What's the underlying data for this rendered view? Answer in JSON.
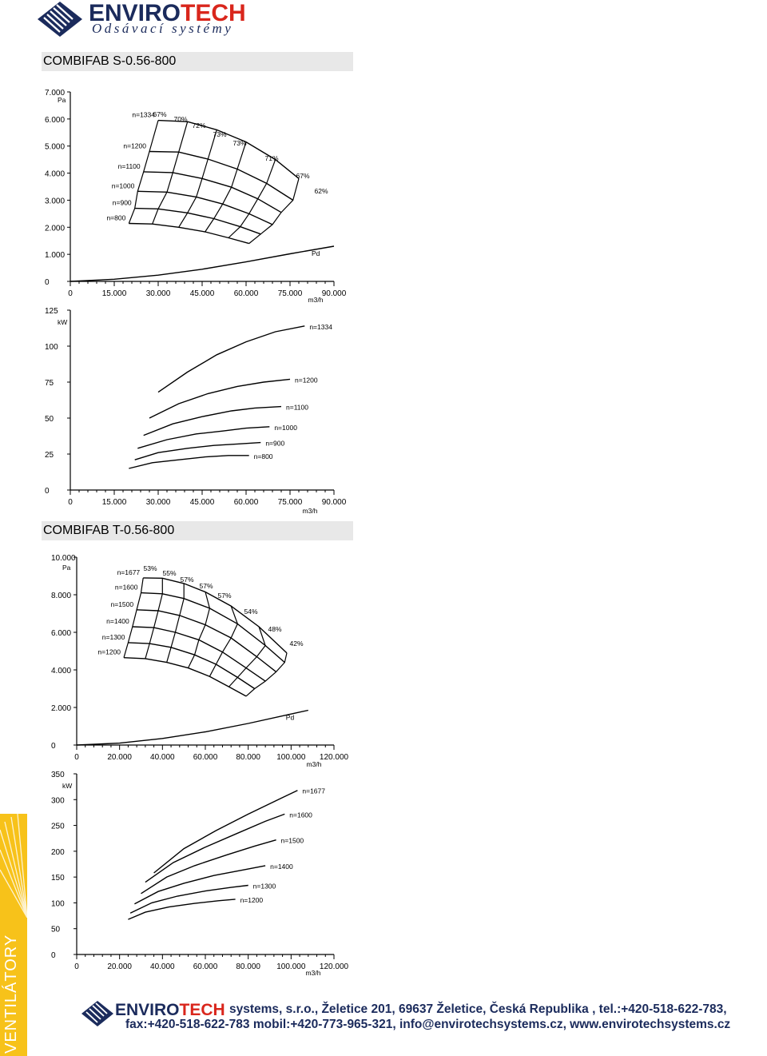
{
  "header": {
    "brand_part1": "ENVIRO",
    "brand_part2": "TECH",
    "tagline": "Odsávací systémy"
  },
  "sections": {
    "s_title": "COMBIFAB S-0.56-800",
    "t_title": "COMBIFAB T-0.56-800"
  },
  "sidebar": {
    "label": "VENTILÁTORY"
  },
  "footer": {
    "brand_part1": "ENVIRO",
    "brand_part2": "TECH",
    "line1": "systems, s.r.o., Želetice 201, 69637 Želetice, Česká Republika , tel.:+420-518-622-783,",
    "line2": "fax:+420-518-622-783 mobil:+420-773-965-321, info@envirotechsystems.cz, www.envirotechsystems.cz"
  },
  "colors": {
    "brand_blue": "#1b2b5c",
    "brand_red": "#d9261c",
    "accent_yellow": "#f7c21a"
  },
  "chart_data": [
    {
      "id": "s_pressure",
      "type": "line",
      "xlim": [
        0,
        90000
      ],
      "ylim": [
        0,
        7000
      ],
      "xticks": [
        0,
        15000,
        30000,
        45000,
        60000,
        75000,
        90000
      ],
      "xtick_labels": [
        "0",
        "15.000",
        "30.000",
        "45.000",
        "60.000",
        "75.000",
        "90.000"
      ],
      "yticks": [
        0,
        1000,
        2000,
        3000,
        4000,
        5000,
        6000,
        7000
      ],
      "ytick_labels": [
        "0",
        "1.000",
        "2.000",
        "3.000",
        "4.000",
        "5.000",
        "6.000",
        "7.000"
      ],
      "xlabel": "m3/h",
      "ylabel": "Pa",
      "series": [
        {
          "name": "n=1334",
          "points": [
            [
              30000,
              5950
            ],
            [
              40000,
              5900
            ],
            [
              50000,
              5600
            ],
            [
              60000,
              5150
            ],
            [
              70000,
              4500
            ],
            [
              78000,
              3800
            ]
          ]
        },
        {
          "name": "n=1200",
          "points": [
            [
              27000,
              4800
            ],
            [
              37000,
              4780
            ],
            [
              47000,
              4520
            ],
            [
              57000,
              4150
            ],
            [
              67000,
              3620
            ],
            [
              76000,
              3000
            ]
          ]
        },
        {
          "name": "n=1100",
          "points": [
            [
              25000,
              4050
            ],
            [
              35000,
              4020
            ],
            [
              45000,
              3800
            ],
            [
              55000,
              3480
            ],
            [
              64000,
              3050
            ],
            [
              72000,
              2550
            ]
          ]
        },
        {
          "name": "n=1000",
          "points": [
            [
              23000,
              3330
            ],
            [
              33000,
              3300
            ],
            [
              43000,
              3120
            ],
            [
              52000,
              2860
            ],
            [
              61000,
              2500
            ],
            [
              69000,
              2100
            ]
          ]
        },
        {
          "name": "n=900",
          "points": [
            [
              22000,
              2700
            ],
            [
              30000,
              2680
            ],
            [
              40000,
              2530
            ],
            [
              49000,
              2320
            ],
            [
              58000,
              2020
            ],
            [
              65000,
              1750
            ]
          ]
        },
        {
          "name": "n=800",
          "points": [
            [
              20000,
              2140
            ],
            [
              28000,
              2120
            ],
            [
              37000,
              2000
            ],
            [
              46000,
              1830
            ],
            [
              54000,
              1610
            ],
            [
              61000,
              1400
            ]
          ]
        },
        {
          "name": "Pd",
          "points": [
            [
              0,
              0
            ],
            [
              15000,
              80
            ],
            [
              30000,
              230
            ],
            [
              45000,
              450
            ],
            [
              60000,
              720
            ],
            [
              75000,
              1020
            ],
            [
              90000,
              1300
            ]
          ]
        }
      ],
      "efficiency_labels": [
        "67%",
        "70%",
        "72%",
        "73%",
        "73%",
        "71%",
        "67%",
        "62%"
      ]
    },
    {
      "id": "s_power",
      "type": "line",
      "xlim": [
        0,
        90000
      ],
      "ylim": [
        0,
        125
      ],
      "xticks": [
        0,
        15000,
        30000,
        45000,
        60000,
        75000,
        90000
      ],
      "xtick_labels": [
        "0",
        "15.000",
        "30.000",
        "45.000",
        "60.000",
        "75.000",
        "90.000"
      ],
      "yticks": [
        0,
        25,
        50,
        75,
        100,
        125
      ],
      "ytick_labels": [
        "0",
        "25",
        "50",
        "75",
        "100",
        "125"
      ],
      "xlabel": "m3/h",
      "ylabel": "kW",
      "series": [
        {
          "name": "n=1334",
          "points": [
            [
              30000,
              68
            ],
            [
              40000,
              82
            ],
            [
              50000,
              94
            ],
            [
              60000,
              103
            ],
            [
              70000,
              110
            ],
            [
              80000,
              114
            ]
          ]
        },
        {
          "name": "n=1200",
          "points": [
            [
              27000,
              50
            ],
            [
              37000,
              60
            ],
            [
              47000,
              67
            ],
            [
              57000,
              72
            ],
            [
              66000,
              75
            ],
            [
              75000,
              77
            ]
          ]
        },
        {
          "name": "n=1100",
          "points": [
            [
              25000,
              38
            ],
            [
              35000,
              46
            ],
            [
              45000,
              51
            ],
            [
              55000,
              55
            ],
            [
              63000,
              57
            ],
            [
              72000,
              58
            ]
          ]
        },
        {
          "name": "n=1000",
          "points": [
            [
              23000,
              29
            ],
            [
              33000,
              35
            ],
            [
              43000,
              39
            ],
            [
              52000,
              41
            ],
            [
              60000,
              43
            ],
            [
              68000,
              44
            ]
          ]
        },
        {
          "name": "n=900",
          "points": [
            [
              22000,
              21
            ],
            [
              30000,
              26
            ],
            [
              40000,
              29
            ],
            [
              49000,
              31
            ],
            [
              57000,
              32
            ],
            [
              65000,
              33
            ]
          ]
        },
        {
          "name": "n=800",
          "points": [
            [
              20000,
              15
            ],
            [
              28000,
              19
            ],
            [
              37000,
              21
            ],
            [
              46000,
              23
            ],
            [
              54000,
              24
            ],
            [
              61000,
              24
            ]
          ]
        }
      ]
    },
    {
      "id": "t_pressure",
      "type": "line",
      "xlim": [
        0,
        120000
      ],
      "ylim": [
        0,
        10000
      ],
      "xticks": [
        0,
        20000,
        40000,
        60000,
        80000,
        100000,
        120000
      ],
      "xtick_labels": [
        "0",
        "20.000",
        "40.000",
        "60.000",
        "80.000",
        "100.000",
        "120.000"
      ],
      "yticks": [
        0,
        2000,
        4000,
        6000,
        8000,
        10000
      ],
      "ytick_labels": [
        "0",
        "2.000",
        "4.000",
        "6.000",
        "8.000",
        "10.000"
      ],
      "xlabel": "m3/h",
      "ylabel": "Pa",
      "series": [
        {
          "name": "n=1677",
          "points": [
            [
              31000,
              8900
            ],
            [
              40000,
              8880
            ],
            [
              50000,
              8600
            ],
            [
              60000,
              8150
            ],
            [
              72000,
              7400
            ],
            [
              85000,
              6300
            ],
            [
              98000,
              4900
            ]
          ]
        },
        {
          "name": "n=1600",
          "points": [
            [
              30000,
              8100
            ],
            [
              40000,
              8050
            ],
            [
              50000,
              7800
            ],
            [
              62000,
              7280
            ],
            [
              75000,
              6450
            ],
            [
              88000,
              5300
            ],
            [
              97000,
              4400
            ]
          ]
        },
        {
          "name": "n=1500",
          "points": [
            [
              28000,
              7200
            ],
            [
              38000,
              7150
            ],
            [
              48000,
              6900
            ],
            [
              60000,
              6400
            ],
            [
              72000,
              5700
            ],
            [
              84000,
              4700
            ],
            [
              93000,
              3900
            ]
          ]
        },
        {
          "name": "n=1400",
          "points": [
            [
              26000,
              6300
            ],
            [
              36000,
              6250
            ],
            [
              46000,
              6000
            ],
            [
              57000,
              5600
            ],
            [
              68000,
              4950
            ],
            [
              79000,
              4100
            ],
            [
              88000,
              3400
            ]
          ]
        },
        {
          "name": "n=1300",
          "points": [
            [
              24000,
              5450
            ],
            [
              34000,
              5400
            ],
            [
              44000,
              5200
            ],
            [
              55000,
              4800
            ],
            [
              65000,
              4300
            ],
            [
              75000,
              3600
            ],
            [
              83000,
              3000
            ]
          ]
        },
        {
          "name": "n=1200",
          "points": [
            [
              22000,
              4650
            ],
            [
              32000,
              4600
            ],
            [
              42000,
              4400
            ],
            [
              52000,
              4100
            ],
            [
              62000,
              3650
            ],
            [
              71000,
              3100
            ],
            [
              79000,
              2600
            ]
          ]
        },
        {
          "name": "Pd",
          "points": [
            [
              0,
              0
            ],
            [
              20000,
              100
            ],
            [
              40000,
              350
            ],
            [
              60000,
              700
            ],
            [
              80000,
              1150
            ],
            [
              100000,
              1650
            ],
            [
              108000,
              1850
            ]
          ]
        }
      ],
      "efficiency_labels": [
        "53%",
        "55%",
        "57%",
        "57%",
        "57%",
        "54%",
        "48%",
        "42%"
      ]
    },
    {
      "id": "t_power",
      "type": "line",
      "xlim": [
        0,
        120000
      ],
      "ylim": [
        0,
        350
      ],
      "xticks": [
        0,
        20000,
        40000,
        60000,
        80000,
        100000,
        120000
      ],
      "xtick_labels": [
        "0",
        "20.000",
        "40.000",
        "60.000",
        "80.000",
        "100.000",
        "120.000"
      ],
      "yticks": [
        0,
        50,
        100,
        150,
        200,
        250,
        300,
        350
      ],
      "ytick_labels": [
        "0",
        "50",
        "100",
        "150",
        "200",
        "250",
        "300",
        "350"
      ],
      "xlabel": "m3/h",
      "ylabel": "kW",
      "series": [
        {
          "name": "n=1677",
          "points": [
            [
              36000,
              158
            ],
            [
              50000,
              205
            ],
            [
              65000,
              240
            ],
            [
              80000,
              272
            ],
            [
              95000,
              302
            ],
            [
              103000,
              318
            ]
          ]
        },
        {
          "name": "n=1600",
          "points": [
            [
              32000,
              140
            ],
            [
              45000,
              178
            ],
            [
              60000,
              208
            ],
            [
              75000,
              235
            ],
            [
              88000,
              258
            ],
            [
              97000,
              272
            ]
          ]
        },
        {
          "name": "n=1500",
          "points": [
            [
              30000,
              118
            ],
            [
              42000,
              150
            ],
            [
              55000,
              172
            ],
            [
              70000,
              193
            ],
            [
              83000,
              210
            ],
            [
              93000,
              222
            ]
          ]
        },
        {
          "name": "n=1400",
          "points": [
            [
              27000,
              98
            ],
            [
              38000,
              122
            ],
            [
              50000,
              138
            ],
            [
              64000,
              153
            ],
            [
              78000,
              164
            ],
            [
              88000,
              172
            ]
          ]
        },
        {
          "name": "n=1300",
          "points": [
            [
              25000,
              80
            ],
            [
              35000,
              100
            ],
            [
              47000,
              113
            ],
            [
              60000,
              123
            ],
            [
              72000,
              130
            ],
            [
              80000,
              134
            ]
          ]
        },
        {
          "name": "n=1200",
          "points": [
            [
              24000,
              68
            ],
            [
              32000,
              82
            ],
            [
              43000,
              92
            ],
            [
              55000,
              99
            ],
            [
              66000,
              104
            ],
            [
              74000,
              107
            ]
          ]
        }
      ]
    }
  ]
}
